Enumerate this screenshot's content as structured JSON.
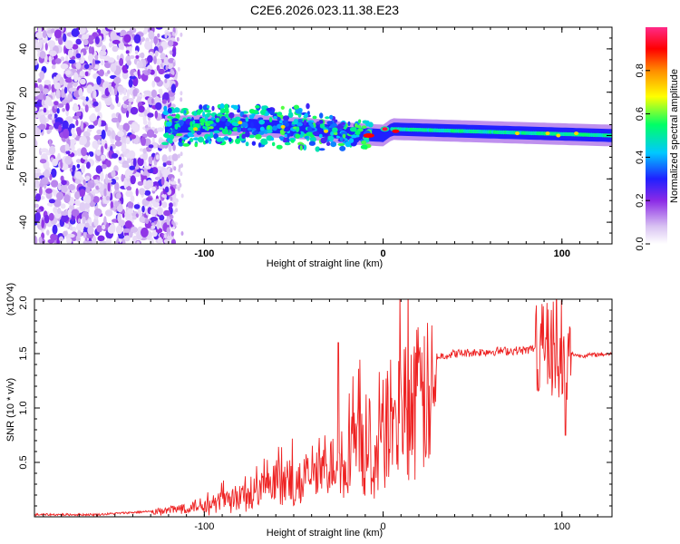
{
  "title": "C2E6.2026.023.11.38.E23",
  "chart_data": [
    {
      "type": "heatmap",
      "title": "C2E6.2026.023.11.38.E23",
      "xlabel": "Height of straight line (km)",
      "ylabel": "Frequency (Hz)",
      "xlim": [
        -195,
        128
      ],
      "ylim": [
        -50,
        50
      ],
      "xticks": [
        -100,
        0,
        100
      ],
      "xtick_labels": [
        "-100",
        "0",
        "100"
      ],
      "yticks": [
        -40,
        -20,
        0,
        20,
        40
      ],
      "ytick_labels": [
        "-40",
        "-20",
        "0",
        "20",
        "40"
      ],
      "colorbar": {
        "label": "Normalized spectral amplitude",
        "range": [
          0,
          1
        ],
        "ticks": [
          0.0,
          0.2,
          0.4,
          0.6,
          0.8
        ],
        "tick_labels": [
          "0.0",
          "0.2",
          "0.4",
          "0.6",
          "0.8"
        ],
        "colormap": [
          "#e6d7f5",
          "#8b2ae6",
          "#1a1aff",
          "#00c0ff",
          "#00ff66",
          "#ffff00",
          "#ff8000",
          "#ff0000",
          "#ff1a80"
        ]
      },
      "regions": [
        {
          "name": "noise",
          "x_range": [
            -195,
            -122
          ],
          "freq_range": [
            -50,
            50
          ],
          "amplitude": 0.12
        },
        {
          "name": "signal-band",
          "x_range": [
            -122,
            128
          ],
          "center_freq": [
            [
              -122,
              4
            ],
            [
              -80,
              5
            ],
            [
              -40,
              3
            ],
            [
              -20,
              1
            ],
            [
              0,
              0
            ],
            [
              5,
              3
            ],
            [
              128,
              0
            ]
          ],
          "amplitude": 0.6
        },
        {
          "name": "peak",
          "x_center": 0,
          "freq": 0,
          "amplitude": 0.95
        }
      ]
    },
    {
      "type": "line",
      "series": [
        {
          "name": "SNR",
          "color": "#ee2222"
        }
      ],
      "xlabel": "Height of straight line (km)",
      "ylabel": "SNR (10 * v/v)",
      "y_multiplier": "(x10^4)",
      "xlim": [
        -195,
        128
      ],
      "ylim": [
        0,
        2.0
      ],
      "xticks": [
        -100,
        0,
        100
      ],
      "xtick_labels": [
        "-100",
        "0",
        "100"
      ],
      "yticks": [
        0.5,
        1.0,
        1.5,
        2.0
      ],
      "ytick_labels": [
        "0.5",
        "1.0",
        "1.5",
        "2.0"
      ],
      "envelope_x": [
        -195,
        -160,
        -130,
        -120,
        -100,
        -80,
        -60,
        -40,
        -20,
        -10,
        -5,
        0,
        10,
        20,
        30,
        40,
        60,
        80,
        85,
        90,
        95,
        100,
        105,
        110,
        128
      ],
      "envelope_y": [
        0.02,
        0.02,
        0.05,
        0.08,
        0.15,
        0.25,
        0.35,
        0.5,
        0.75,
        0.95,
        0.5,
        1.05,
        1.28,
        1.42,
        1.47,
        1.5,
        1.52,
        1.53,
        1.55,
        1.6,
        1.5,
        1.45,
        1.5,
        1.48,
        1.5
      ],
      "spike_highlights": [
        {
          "x": -25,
          "y": 1.6
        },
        {
          "x": 92,
          "y": 2.0
        },
        {
          "x": 102,
          "y": 0.75
        }
      ]
    }
  ]
}
